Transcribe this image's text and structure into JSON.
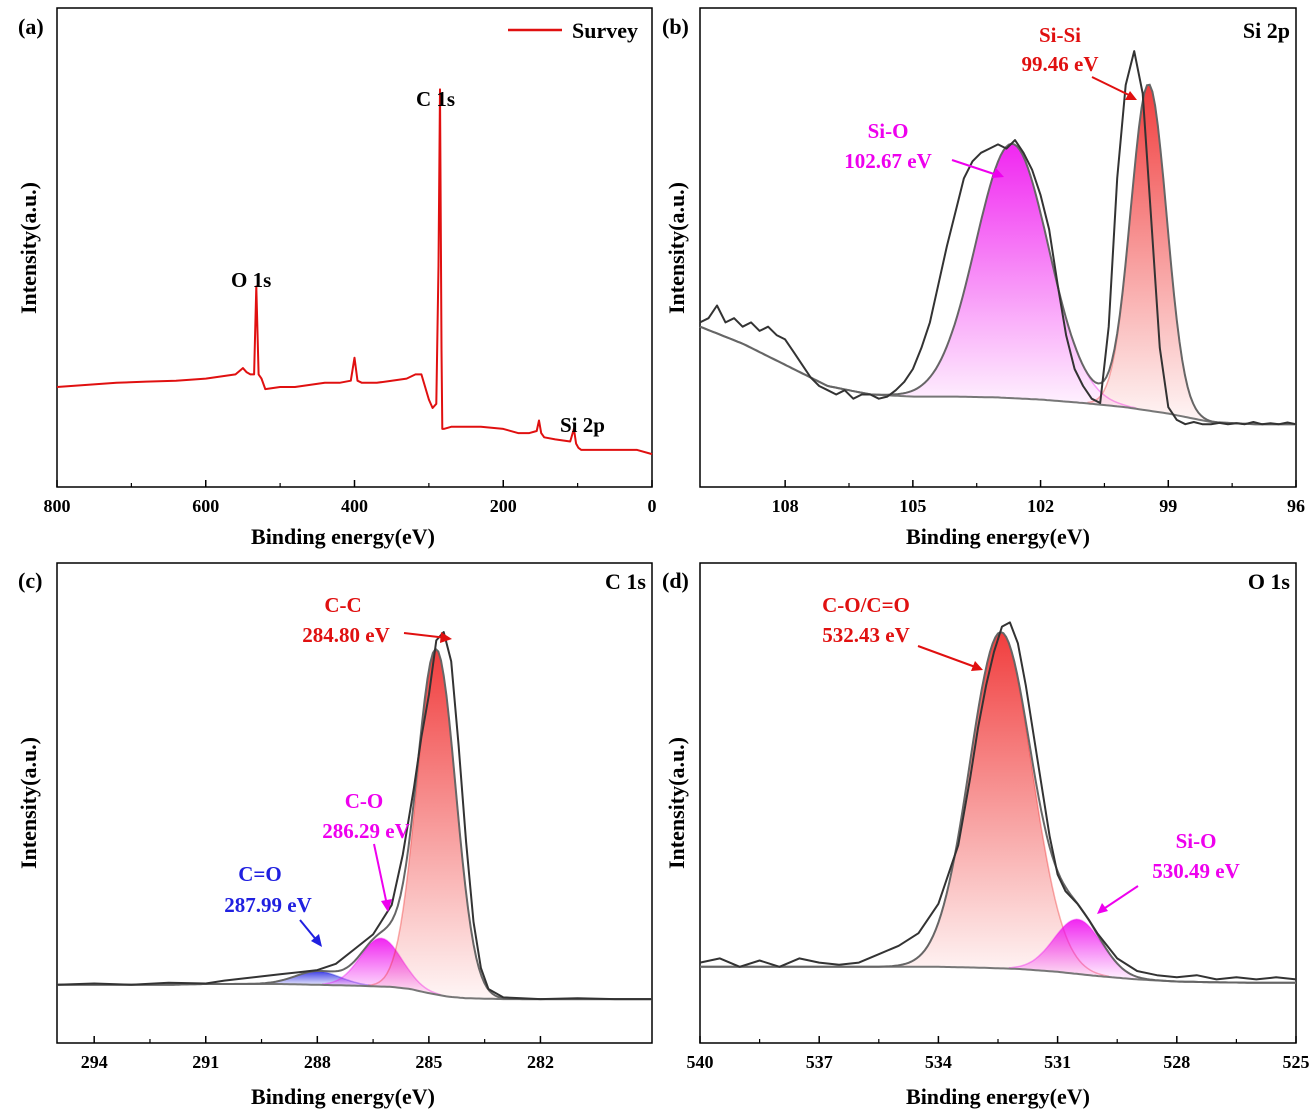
{
  "chart_data": [
    {
      "id": "a",
      "type": "line",
      "panel_label": "(a)",
      "xlabel": "Binding energy(eV)",
      "ylabel": "Intensity(a.u.)",
      "xlim": [
        800,
        0
      ],
      "ylim": [
        0,
        100
      ],
      "xticks": [
        800,
        600,
        400,
        200,
        0
      ],
      "xtick_labels": [
        "800",
        "600",
        "400",
        "200",
        "0"
      ],
      "legend": {
        "label": "Survey",
        "color": "#e01010",
        "placement": "top-right"
      },
      "series": [
        {
          "name": "Survey",
          "color": "#e01010",
          "x": [
            800,
            760,
            720,
            680,
            640,
            600,
            580,
            560,
            550,
            545,
            540,
            535,
            532,
            529,
            525,
            520,
            500,
            480,
            460,
            440,
            420,
            405,
            400,
            396,
            390,
            370,
            350,
            330,
            318,
            310,
            300,
            295,
            290,
            287,
            285,
            283,
            282,
            280,
            270,
            250,
            230,
            200,
            180,
            165,
            155,
            152,
            149,
            145,
            130,
            110,
            105,
            102,
            99,
            95,
            80,
            60,
            40,
            20,
            0
          ],
          "y": [
            21,
            21.5,
            22,
            22.3,
            22.5,
            23,
            23.5,
            24,
            25.5,
            24.5,
            24,
            24,
            45,
            24,
            23,
            20.5,
            21,
            21,
            21.5,
            22,
            22,
            22.5,
            28,
            22.5,
            22,
            22,
            22.5,
            23,
            24,
            24,
            18,
            16,
            17,
            50,
            92,
            30,
            11,
            11,
            11.5,
            11.5,
            11.5,
            11,
            10,
            10,
            10.5,
            13,
            10,
            9,
            8.5,
            8,
            11,
            7.5,
            6.5,
            6,
            6,
            6,
            6,
            6,
            5
          ]
        }
      ],
      "annotations": [
        {
          "text": "O 1s",
          "color": "#000000"
        },
        {
          "text": "C 1s",
          "color": "#000000"
        },
        {
          "text": "Si 2p",
          "color": "#000000"
        }
      ]
    },
    {
      "id": "b",
      "type": "area",
      "panel_label": "(b)",
      "corner_label": "Si 2p",
      "xlabel": "Binding energy(eV)",
      "ylabel": "Intensity(a.u.)",
      "xlim": [
        110,
        96
      ],
      "ylim": [
        0,
        100
      ],
      "xticks": [
        108,
        105,
        102,
        99,
        96
      ],
      "xtick_labels": [
        "108",
        "105",
        "102",
        "99",
        "96"
      ],
      "background": {
        "x": [
          110,
          109,
          108,
          107,
          106,
          105,
          104,
          103,
          102,
          101,
          100,
          99,
          98,
          97,
          96
        ],
        "y": [
          35,
          31,
          26,
          21,
          19,
          18.5,
          18.5,
          18.3,
          17.8,
          17,
          16,
          14.5,
          12.5,
          12,
          12
        ]
      },
      "components": [
        {
          "name": "Si-O",
          "center": 102.67,
          "height": 60,
          "sigma": 0.85,
          "color": "#ee00ee"
        },
        {
          "name": "Si-Si",
          "center": 99.46,
          "height": 77,
          "sigma": 0.42,
          "color": "#ee1c1c"
        }
      ],
      "raw": {
        "x": [
          110,
          109.8,
          109.6,
          109.4,
          109.2,
          109,
          108.8,
          108.6,
          108.4,
          108.2,
          108,
          107.8,
          107.6,
          107.4,
          107.2,
          107,
          106.8,
          106.6,
          106.4,
          106.2,
          106,
          105.8,
          105.6,
          105.4,
          105.2,
          105,
          104.8,
          104.6,
          104.4,
          104.2,
          104,
          103.8,
          103.6,
          103.4,
          103.2,
          103,
          102.8,
          102.6,
          102.4,
          102.2,
          102,
          101.8,
          101.6,
          101.4,
          101.2,
          101,
          100.8,
          100.6,
          100.4,
          100.2,
          100,
          99.8,
          99.6,
          99.4,
          99.2,
          99,
          98.8,
          98.6,
          98.4,
          98.2,
          98,
          97.8,
          97.6,
          97.4,
          97.2,
          97,
          96.8,
          96.6,
          96.4,
          96.2,
          96
        ],
        "y": [
          36,
          37,
          40,
          36,
          37,
          35,
          36,
          34,
          35,
          33,
          32,
          29,
          26,
          23,
          21,
          20,
          19,
          20,
          18,
          19,
          19,
          18,
          18.5,
          20,
          22,
          25,
          30,
          36,
          45,
          54,
          62,
          70,
          74,
          76,
          77,
          78,
          77,
          79,
          76,
          72,
          66,
          58,
          45,
          33,
          25,
          21,
          18,
          17,
          35,
          70,
          92,
          100,
          90,
          60,
          30,
          16,
          13,
          12,
          12.5,
          12,
          12,
          12.3,
          12,
          12.2,
          12,
          12.5,
          12,
          12.2,
          12,
          12.4,
          12
        ]
      },
      "annotations": [
        {
          "text": "Si-O",
          "color": "#ee00ee"
        },
        {
          "text": "102.67 eV",
          "color": "#ee00ee"
        },
        {
          "text": "Si-Si",
          "color": "#e01010"
        },
        {
          "text": "99.46 eV",
          "color": "#e01010"
        }
      ]
    },
    {
      "id": "c",
      "type": "area",
      "panel_label": "(c)",
      "corner_label": "C 1s",
      "xlabel": "Binding energy(eV)",
      "ylabel": "Intensity(a.u.)",
      "xlim": [
        295,
        279
      ],
      "ylim": [
        0,
        100
      ],
      "xticks": [
        294,
        291,
        288,
        285,
        282
      ],
      "xtick_labels": [
        "294",
        "291",
        "288",
        "285",
        "282"
      ],
      "background": {
        "x": [
          295,
          294,
          293,
          292,
          291,
          290,
          289,
          288,
          287,
          286,
          285.5,
          285,
          284.5,
          284,
          283,
          282,
          281,
          280,
          279
        ],
        "y": [
          11,
          11,
          11,
          11,
          11.2,
          11.2,
          11.2,
          11,
          10.8,
          10.5,
          10,
          9,
          8.2,
          7.8,
          7.6,
          7.6,
          7.6,
          7.6,
          7.6
        ]
      },
      "components": [
        {
          "name": "C=O",
          "center": 287.99,
          "height": 3.2,
          "sigma": 0.6,
          "color": "#2020e0"
        },
        {
          "name": "C-O",
          "center": 286.29,
          "height": 11.5,
          "sigma": 0.55,
          "color": "#ee00ee"
        },
        {
          "name": "C-C",
          "center": 284.8,
          "height": 82,
          "sigma": 0.52,
          "color": "#ee1c1c"
        }
      ],
      "raw": {
        "x": [
          295,
          294,
          293,
          292,
          291,
          290.5,
          290,
          289.5,
          289,
          288.5,
          288,
          287.5,
          287,
          286.5,
          286,
          285.7,
          285.4,
          285.2,
          285,
          284.8,
          284.6,
          284.4,
          284.2,
          284,
          283.8,
          283.6,
          283.4,
          283,
          282.5,
          282,
          281,
          280,
          279
        ],
        "y": [
          11,
          11.3,
          11,
          11.5,
          11.3,
          12,
          12.5,
          13,
          13.5,
          14,
          14.5,
          16,
          19.5,
          23,
          30,
          42,
          58,
          70,
          80,
          93,
          95,
          88,
          68,
          45,
          26,
          15,
          10,
          8,
          7.8,
          7.6,
          7.8,
          7.6,
          7.6
        ]
      },
      "annotations": [
        {
          "text": "C-C",
          "color": "#e01010"
        },
        {
          "text": "284.80 eV",
          "color": "#e01010"
        },
        {
          "text": "C-O",
          "color": "#ee00ee"
        },
        {
          "text": "286.29 eV",
          "color": "#ee00ee"
        },
        {
          "text": "C=O",
          "color": "#2020e0"
        },
        {
          "text": "287.99 eV",
          "color": "#2020e0"
        }
      ]
    },
    {
      "id": "d",
      "type": "area",
      "panel_label": "(d)",
      "corner_label": "O 1s",
      "xlabel": "Binding energy(eV)",
      "ylabel": "Intensity(a.u.)",
      "xlim": [
        540,
        525
      ],
      "ylim": [
        0,
        100
      ],
      "xticks": [
        540,
        537,
        534,
        531,
        528,
        525
      ],
      "xtick_labels": [
        "540",
        "537",
        "534",
        "531",
        "528",
        "525"
      ],
      "background": {
        "x": [
          540,
          538,
          536,
          534,
          533,
          532,
          531,
          530,
          529,
          528,
          527,
          526,
          525
        ],
        "y": [
          13,
          13,
          13,
          13,
          12.8,
          12.5,
          11.8,
          10.8,
          10,
          9.5,
          9.3,
          9.2,
          9.2
        ]
      },
      "components": [
        {
          "name": "C-O/C=O",
          "center": 532.43,
          "height": 80,
          "sigma": 0.78,
          "color": "#ee1c1c"
        },
        {
          "name": "Si-O",
          "center": 530.49,
          "height": 13,
          "sigma": 0.6,
          "color": "#ee00ee"
        }
      ],
      "raw": {
        "x": [
          540,
          539.5,
          539,
          538.5,
          538,
          537.5,
          537,
          536.5,
          536,
          535.5,
          535,
          534.5,
          534,
          533.5,
          533.2,
          533,
          532.8,
          532.6,
          532.4,
          532.2,
          532,
          531.8,
          531.5,
          531.2,
          531,
          530.8,
          530.5,
          530.2,
          530,
          529.5,
          529,
          528.5,
          528,
          527.5,
          527,
          526.5,
          526,
          525.5,
          525
        ],
        "y": [
          14,
          15,
          13,
          14.5,
          13,
          15,
          14,
          13.5,
          14,
          16,
          18,
          21,
          28,
          42,
          58,
          70,
          80,
          88,
          94,
          95,
          90,
          80,
          62,
          44,
          35,
          31,
          28,
          24,
          21,
          15,
          12,
          11,
          10.5,
          11,
          10,
          10.5,
          10,
          10.5,
          10
        ]
      },
      "annotations": [
        {
          "text": "C-O/C=O",
          "color": "#e01010"
        },
        {
          "text": "532.43 eV",
          "color": "#e01010"
        },
        {
          "text": "Si-O",
          "color": "#ee00ee"
        },
        {
          "text": "530.49 eV",
          "color": "#ee00ee"
        }
      ]
    }
  ]
}
